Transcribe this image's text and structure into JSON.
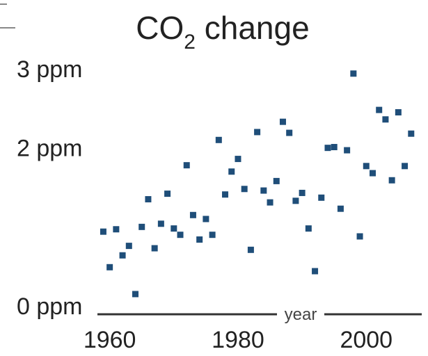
{
  "chart_data": {
    "type": "scatter",
    "title": "CO",
    "title_subscript": "2",
    "title_suffix": " change",
    "xlabel": "year",
    "ylabel": "",
    "xlim": [
      1957,
      2008
    ],
    "ylim": [
      0,
      3
    ],
    "xticks": [
      1960,
      1980,
      2000
    ],
    "ytick_values": [
      0,
      2,
      3
    ],
    "yticks": [
      "0 ppm",
      "2 ppm",
      "3 ppm"
    ],
    "grid": false,
    "series": [
      {
        "color": "#1f4e79",
        "points": [
          [
            1959,
            0.94
          ],
          [
            1960,
            0.49
          ],
          [
            1961,
            0.97
          ],
          [
            1962,
            0.64
          ],
          [
            1963,
            0.76
          ],
          [
            1964,
            0.15
          ],
          [
            1965,
            1.0
          ],
          [
            1966,
            1.35
          ],
          [
            1967,
            0.73
          ],
          [
            1968,
            1.04
          ],
          [
            1969,
            1.42
          ],
          [
            1970,
            0.98
          ],
          [
            1971,
            0.9
          ],
          [
            1972,
            1.78
          ],
          [
            1973,
            1.15
          ],
          [
            1974,
            0.84
          ],
          [
            1975,
            1.1
          ],
          [
            1976,
            0.9
          ],
          [
            1977,
            2.1
          ],
          [
            1978,
            1.41
          ],
          [
            1979,
            1.7
          ],
          [
            1980,
            1.86
          ],
          [
            1981,
            1.48
          ],
          [
            1982,
            0.71
          ],
          [
            1983,
            2.2
          ],
          [
            1984,
            1.46
          ],
          [
            1985,
            1.31
          ],
          [
            1986,
            1.58
          ],
          [
            1987,
            2.33
          ],
          [
            1988,
            2.19
          ],
          [
            1989,
            1.33
          ],
          [
            1990,
            1.43
          ],
          [
            1991,
            0.98
          ],
          [
            1992,
            0.44
          ],
          [
            1993,
            1.37
          ],
          [
            1994,
            2.0
          ],
          [
            1995,
            2.01
          ],
          [
            1996,
            1.23
          ],
          [
            1997,
            1.97
          ],
          [
            1998,
            2.94
          ],
          [
            1999,
            0.88
          ],
          [
            2000,
            1.77
          ],
          [
            2001,
            1.68
          ],
          [
            2002,
            2.48
          ],
          [
            2003,
            2.36
          ],
          [
            2004,
            1.59
          ],
          [
            2005,
            2.45
          ],
          [
            2006,
            1.77
          ],
          [
            2007,
            2.18
          ]
        ]
      }
    ]
  }
}
